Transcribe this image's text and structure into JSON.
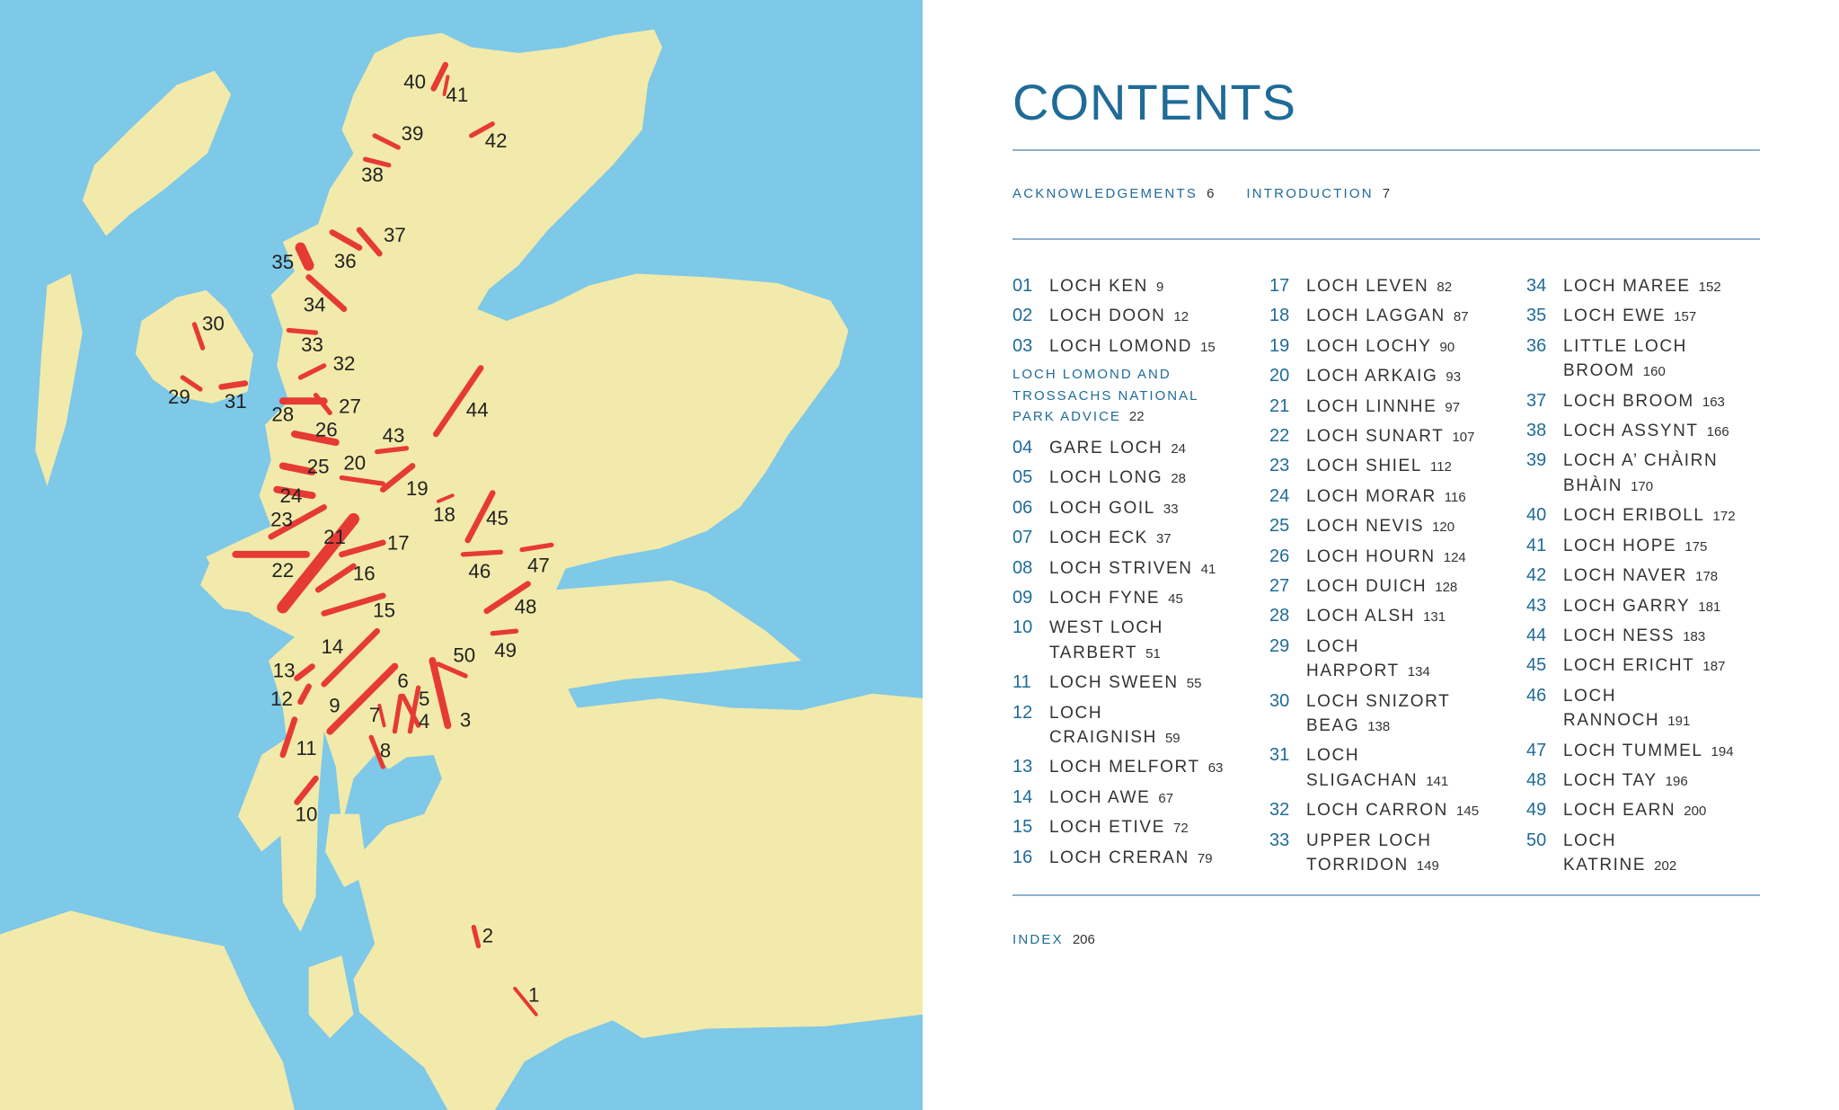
{
  "colors": {
    "sea": "#7ec8e8",
    "land": "#f2eaaa",
    "loch": "#e63a35",
    "accent": "#1f6b98",
    "rule": "#8fb0cc"
  },
  "map": {
    "labels": [
      "1",
      "2",
      "3",
      "4",
      "5",
      "6",
      "7",
      "8",
      "9",
      "10",
      "11",
      "12",
      "13",
      "14",
      "15",
      "16",
      "17",
      "18",
      "19",
      "20",
      "21",
      "22",
      "23",
      "24",
      "25",
      "26",
      "27",
      "28",
      "29",
      "30",
      "31",
      "32",
      "33",
      "34",
      "35",
      "36",
      "37",
      "38",
      "39",
      "40",
      "41",
      "42",
      "43",
      "44",
      "45",
      "46",
      "47",
      "48",
      "49",
      "50"
    ]
  },
  "contents": {
    "title": "CONTENTS",
    "front_matter": [
      {
        "label": "ACKNOWLEDGEMENTS",
        "page": "6"
      },
      {
        "label": "INTRODUCTION",
        "page": "7"
      }
    ],
    "park_advice": {
      "lines": [
        "LOCH LOMOND AND",
        "TROSSACHS NATIONAL",
        "PARK ADVICE"
      ],
      "page": "22"
    },
    "columns": [
      [
        {
          "num": "01",
          "lines": [
            "LOCH KEN"
          ],
          "page": "9"
        },
        {
          "num": "02",
          "lines": [
            "LOCH DOON"
          ],
          "page": "12"
        },
        {
          "num": "03",
          "lines": [
            "LOCH LOMOND"
          ],
          "page": "15"
        },
        {
          "park": true
        },
        {
          "num": "04",
          "lines": [
            "GARE LOCH"
          ],
          "page": "24"
        },
        {
          "num": "05",
          "lines": [
            "LOCH LONG"
          ],
          "page": "28"
        },
        {
          "num": "06",
          "lines": [
            "LOCH GOIL"
          ],
          "page": "33"
        },
        {
          "num": "07",
          "lines": [
            "LOCH ECK"
          ],
          "page": "37"
        },
        {
          "num": "08",
          "lines": [
            "LOCH STRIVEN"
          ],
          "page": "41"
        },
        {
          "num": "09",
          "lines": [
            "LOCH FYNE"
          ],
          "page": "45"
        },
        {
          "num": "10",
          "lines": [
            "WEST LOCH",
            "TARBERT"
          ],
          "page": "51"
        },
        {
          "num": "11",
          "lines": [
            "LOCH SWEEN"
          ],
          "page": "55"
        },
        {
          "num": "12",
          "lines": [
            "LOCH",
            "CRAIGNISH"
          ],
          "page": "59"
        },
        {
          "num": "13",
          "lines": [
            "LOCH MELFORT"
          ],
          "page": "63"
        },
        {
          "num": "14",
          "lines": [
            "LOCH AWE"
          ],
          "page": "67"
        },
        {
          "num": "15",
          "lines": [
            "LOCH ETIVE"
          ],
          "page": "72"
        },
        {
          "num": "16",
          "lines": [
            "LOCH CRERAN"
          ],
          "page": "79"
        }
      ],
      [
        {
          "num": "17",
          "lines": [
            "LOCH LEVEN"
          ],
          "page": "82"
        },
        {
          "num": "18",
          "lines": [
            "LOCH LAGGAN"
          ],
          "page": "87"
        },
        {
          "num": "19",
          "lines": [
            "LOCH LOCHY"
          ],
          "page": "90"
        },
        {
          "num": "20",
          "lines": [
            "LOCH ARKAIG"
          ],
          "page": "93"
        },
        {
          "num": "21",
          "lines": [
            "LOCH LINNHE"
          ],
          "page": "97"
        },
        {
          "num": "22",
          "lines": [
            "LOCH SUNART"
          ],
          "page": "107"
        },
        {
          "num": "23",
          "lines": [
            "LOCH SHIEL"
          ],
          "page": "112"
        },
        {
          "num": "24",
          "lines": [
            "LOCH MORAR"
          ],
          "page": "116"
        },
        {
          "num": "25",
          "lines": [
            "LOCH NEVIS"
          ],
          "page": "120"
        },
        {
          "num": "26",
          "lines": [
            "LOCH HOURN"
          ],
          "page": "124"
        },
        {
          "num": "27",
          "lines": [
            "LOCH DUICH"
          ],
          "page": "128"
        },
        {
          "num": "28",
          "lines": [
            "LOCH ALSH"
          ],
          "page": "131"
        },
        {
          "num": "29",
          "lines": [
            "LOCH",
            "HARPORT"
          ],
          "page": "134"
        },
        {
          "num": "30",
          "lines": [
            "LOCH SNIZORT",
            "BEAG"
          ],
          "page": "138"
        },
        {
          "num": "31",
          "lines": [
            "LOCH",
            "SLIGACHAN"
          ],
          "page": "141"
        },
        {
          "num": "32",
          "lines": [
            "LOCH CARRON"
          ],
          "page": "145"
        },
        {
          "num": "33",
          "lines": [
            "UPPER LOCH",
            "TORRIDON"
          ],
          "page": "149"
        }
      ],
      [
        {
          "num": "34",
          "lines": [
            "LOCH MAREE"
          ],
          "page": "152"
        },
        {
          "num": "35",
          "lines": [
            "LOCH EWE"
          ],
          "page": "157"
        },
        {
          "num": "36",
          "lines": [
            "LITTLE LOCH",
            "BROOM"
          ],
          "page": "160"
        },
        {
          "num": "37",
          "lines": [
            "LOCH BROOM"
          ],
          "page": "163"
        },
        {
          "num": "38",
          "lines": [
            "LOCH ASSYNT"
          ],
          "page": "166"
        },
        {
          "num": "39",
          "lines": [
            "LOCH A’ CHÀIRN",
            "BHÀIN"
          ],
          "page": "170"
        },
        {
          "num": "40",
          "lines": [
            "LOCH ERIBOLL"
          ],
          "page": "172"
        },
        {
          "num": "41",
          "lines": [
            "LOCH HOPE"
          ],
          "page": "175"
        },
        {
          "num": "42",
          "lines": [
            "LOCH NAVER"
          ],
          "page": "178"
        },
        {
          "num": "43",
          "lines": [
            "LOCH GARRY"
          ],
          "page": "181"
        },
        {
          "num": "44",
          "lines": [
            "LOCH NESS"
          ],
          "page": "183"
        },
        {
          "num": "45",
          "lines": [
            "LOCH ERICHT"
          ],
          "page": "187"
        },
        {
          "num": "46",
          "lines": [
            "LOCH",
            "RANNOCH"
          ],
          "page": "191"
        },
        {
          "num": "47",
          "lines": [
            "LOCH TUMMEL"
          ],
          "page": "194"
        },
        {
          "num": "48",
          "lines": [
            "LOCH TAY"
          ],
          "page": "196"
        },
        {
          "num": "49",
          "lines": [
            "LOCH EARN"
          ],
          "page": "200"
        },
        {
          "num": "50",
          "lines": [
            "LOCH",
            "KATRINE"
          ],
          "page": "202"
        }
      ]
    ],
    "index": {
      "label": "INDEX",
      "page": "206"
    }
  }
}
